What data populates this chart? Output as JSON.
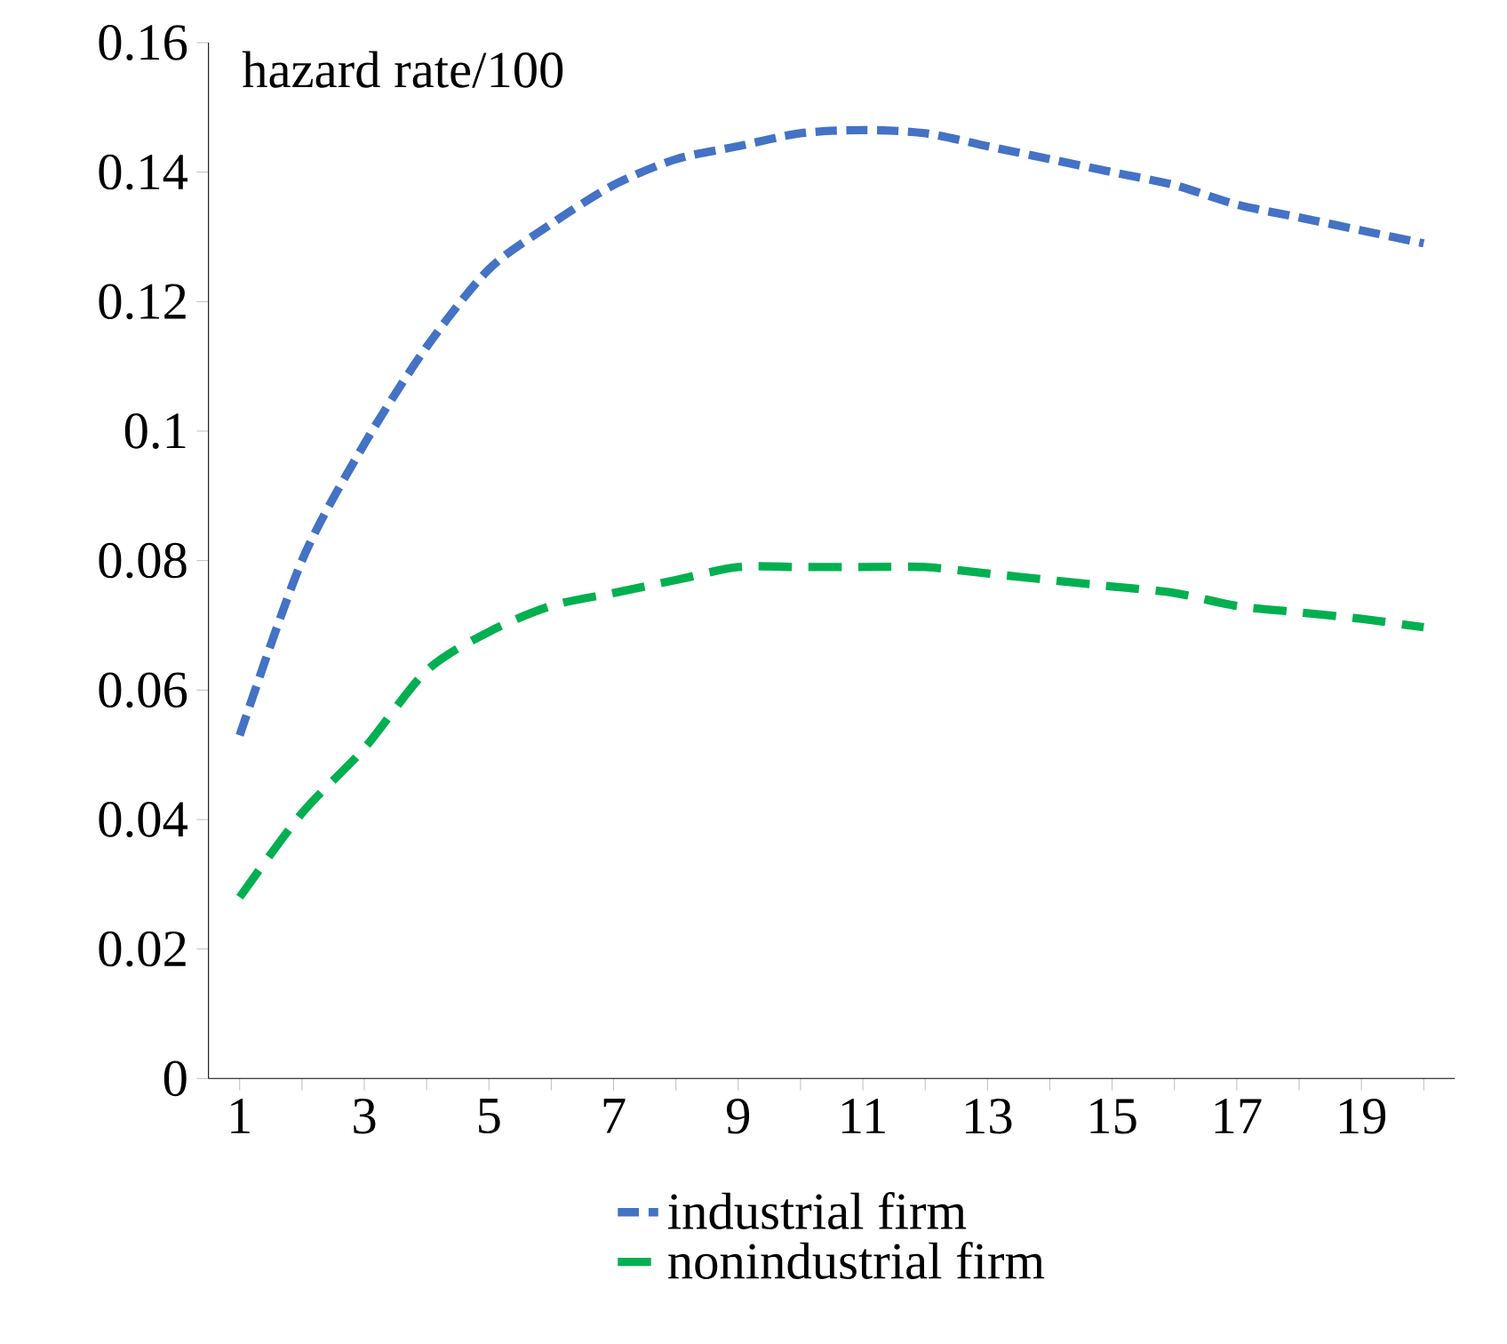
{
  "chart_data": {
    "type": "line",
    "categories": [
      "1",
      null,
      "3",
      null,
      "5",
      null,
      "7",
      null,
      "9",
      null,
      "11",
      null,
      "13",
      null,
      "15",
      null,
      "17",
      null,
      "19",
      null
    ],
    "series": [
      {
        "name": "industrial firm",
        "color": "#4472c4",
        "line_style": "dashed",
        "values": [
          0.053,
          0.08,
          0.098,
          0.113,
          0.125,
          0.132,
          0.138,
          0.142,
          0.144,
          0.146,
          0.1465,
          0.146,
          0.144,
          0.142,
          0.14,
          0.138,
          0.135,
          0.133,
          0.131,
          0.129
        ]
      },
      {
        "name": "nonindustrial firm",
        "color": "#00b050",
        "line_style": "dashed",
        "values": [
          0.028,
          0.041,
          0.051,
          0.063,
          0.069,
          0.073,
          0.075,
          0.077,
          0.079,
          0.079,
          0.079,
          0.079,
          0.078,
          0.077,
          0.076,
          0.075,
          0.073,
          0.072,
          0.071,
          0.0697
        ]
      }
    ],
    "ylim": [
      0,
      0.16
    ],
    "yticks": [
      0,
      0.02,
      0.04,
      0.06,
      0.08,
      0.1,
      0.12,
      0.14,
      0.16
    ],
    "annotations": [
      "hazard rate/100"
    ],
    "grid": false,
    "legend": "bottom"
  }
}
